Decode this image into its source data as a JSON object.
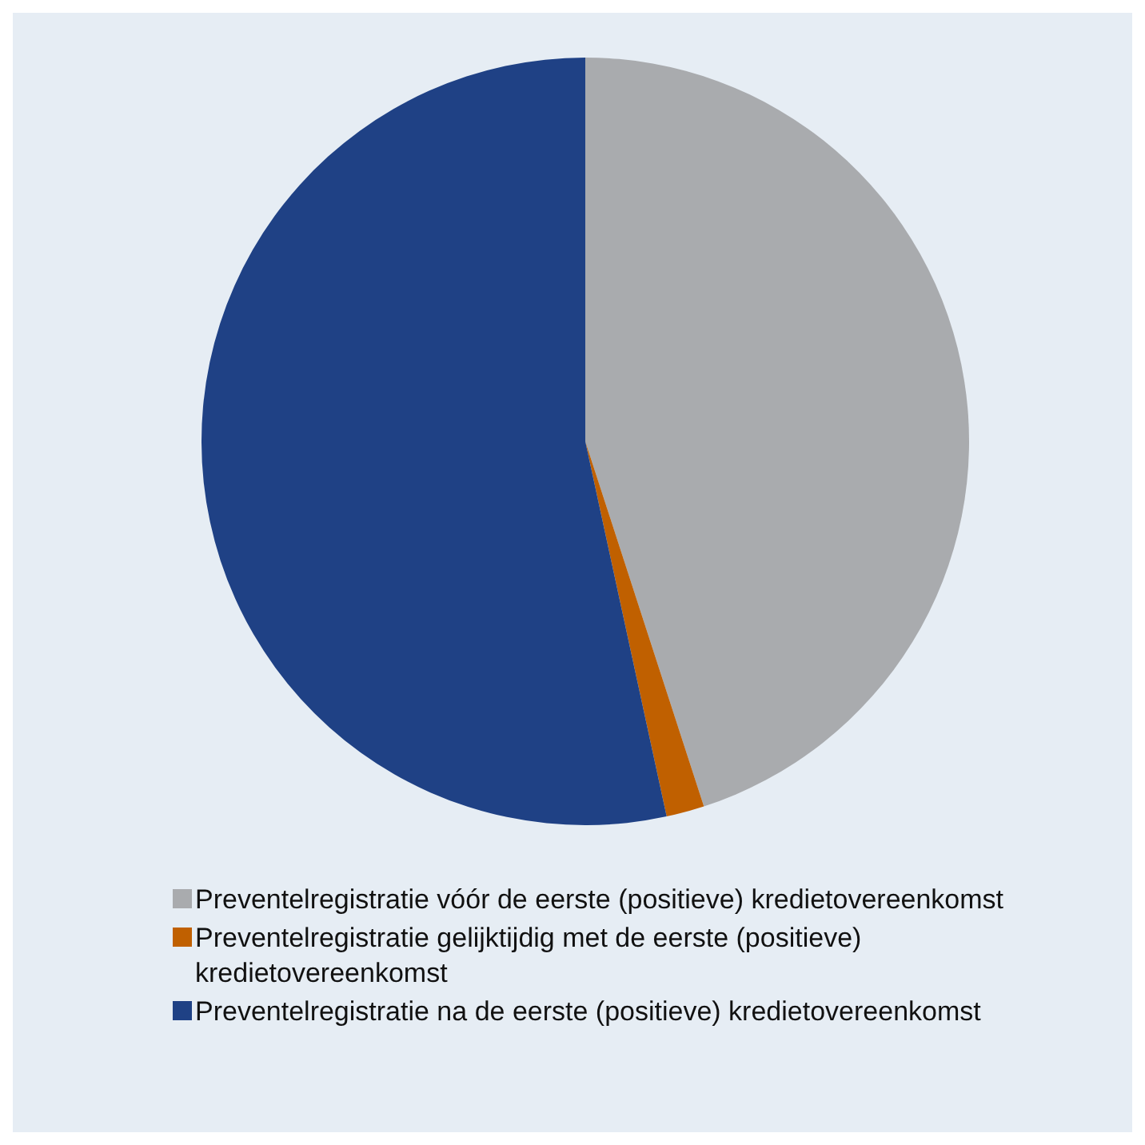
{
  "chart_data": {
    "type": "pie",
    "categories": [
      "Preventelregistratie vóór de eerste (positieve) kredietovereenkomst",
      "Preventelregistratie gelijktijdig met de eerste (positieve) kredietovereenkomst",
      "Preventelregistratie na de eerste (positieve) kredietovereenkomst"
    ],
    "values": [
      45,
      1.6,
      53.4
    ],
    "colors": [
      "#a9abae",
      "#c06000",
      "#1f4185"
    ],
    "legend": "bottom"
  }
}
